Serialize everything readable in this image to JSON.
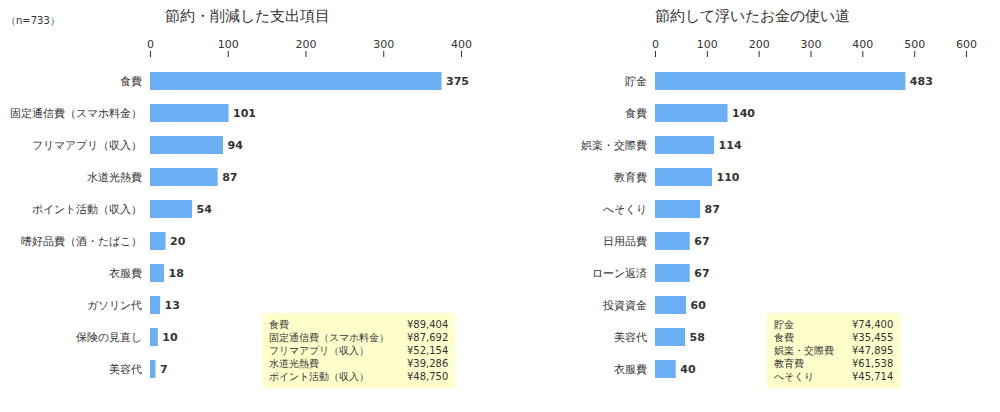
{
  "chart_data": [
    {
      "type": "bar",
      "orientation": "horizontal",
      "title": "節約・削減した支出項目",
      "categories": [
        "食費",
        "固定通信費（スマホ料金）",
        "フリマアプリ（収入）",
        "水道光熱費",
        "ポイント活動（収入）",
        "嗜好品費（酒・たばこ）",
        "衣服費",
        "ガソリン代",
        "保険の見直し",
        "美容代"
      ],
      "values": [
        375,
        101,
        94,
        87,
        54,
        20,
        18,
        13,
        10,
        7
      ],
      "color": "#6aaff5",
      "xlim": [
        0,
        400
      ],
      "xticks": [
        0,
        100,
        200,
        300,
        400
      ],
      "data_labels": true,
      "grid": false,
      "annotations": [
        "（n=733）"
      ],
      "note_items": [
        "食費",
        "固定通信費（スマホ料金）",
        "フリマアプリ（収入）",
        "水道光熱費",
        "ポイント活動（収入）"
      ],
      "note_values": [
        "¥89,404",
        "¥87,692",
        "¥52,154",
        "¥39,286",
        "¥48,750"
      ],
      "note_color": "#ffffcc"
    },
    {
      "type": "bar",
      "orientation": "horizontal",
      "title": "節約して浮いたお金の使い道",
      "categories": [
        "貯金",
        "食費",
        "娯楽・交際費",
        "教育費",
        "へそくり",
        "日用品費",
        "ローン返済",
        "投資資金",
        "美容代",
        "衣服費"
      ],
      "values": [
        483,
        140,
        114,
        110,
        87,
        67,
        67,
        60,
        58,
        40
      ],
      "color": "#6aaff5",
      "xlim": [
        0,
        600
      ],
      "xticks": [
        0,
        100,
        200,
        300,
        400,
        500,
        600
      ],
      "data_labels": true,
      "grid": false,
      "note_items": [
        "貯金",
        "食費",
        "娯楽・交際費",
        "教育費",
        "へそくり"
      ],
      "note_values": [
        "¥74,400",
        "¥35,455",
        "¥47,895",
        "¥61,538",
        "¥45,714"
      ],
      "note_color": "#ffffcc"
    }
  ]
}
